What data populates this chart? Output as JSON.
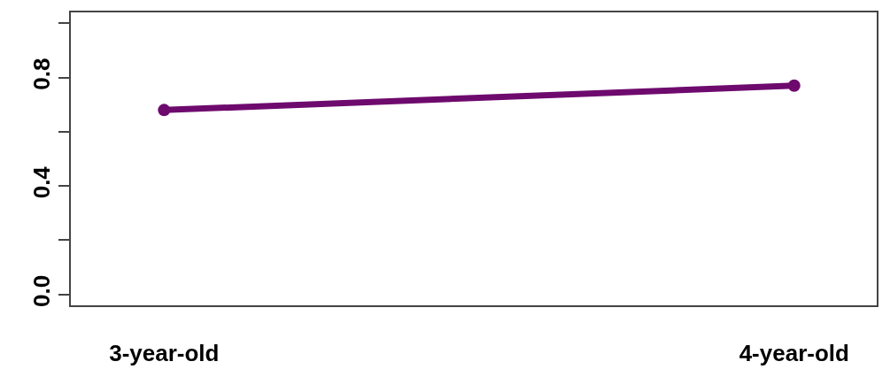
{
  "chart_data": {
    "type": "line",
    "categories": [
      "3-year-old",
      "4-year-old"
    ],
    "series": [
      {
        "color": "#6e0a6e",
        "values": [
          0.68,
          0.77
        ]
      }
    ],
    "ylim": [
      -0.04,
      1.04
    ],
    "yticks": [
      {
        "value": 0,
        "label": "0.0"
      },
      {
        "value": 0.2,
        "label": null
      },
      0.4,
      {
        "value": 0.6,
        "label": null
      },
      0.8,
      {
        "value": 1,
        "label": null
      }
    ],
    "marker": "circle",
    "line_style": "solid"
  }
}
